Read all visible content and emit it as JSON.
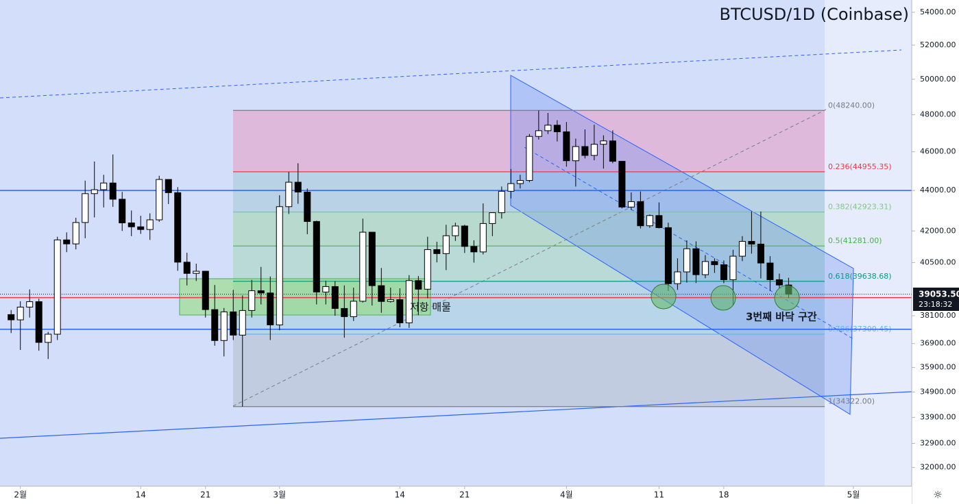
{
  "chart_data": {
    "type": "candlestick",
    "title": "BTCUSD/1D (Coinbase)",
    "log_scale": true,
    "up_color": "#ffffff",
    "down_color": "#000000",
    "ylim": [
      31320,
      54770
    ],
    "yticks": [
      {
        "value": 54000,
        "label": "54000.00"
      },
      {
        "value": 52000,
        "label": "52000.00"
      },
      {
        "value": 50000,
        "label": "50000.00"
      },
      {
        "value": 48000,
        "label": "48000.00"
      },
      {
        "value": 46000,
        "label": "46000.00"
      },
      {
        "value": 44000,
        "label": "44000.00"
      },
      {
        "value": 42000,
        "label": "42000.00"
      },
      {
        "value": 40500,
        "label": "40500.00"
      },
      {
        "value": 38100,
        "label": "38100.00"
      },
      {
        "value": 36900,
        "label": "36900.00"
      },
      {
        "value": 35900,
        "label": "35900.00"
      },
      {
        "value": 34900,
        "label": "34900.00"
      },
      {
        "value": 33900,
        "label": "33900.00"
      },
      {
        "value": 32900,
        "label": "32900.00"
      },
      {
        "value": 32000,
        "label": "32000.00"
      }
    ],
    "xlim": [
      -1.2,
      97.3
    ],
    "xticks": [
      {
        "value": 1,
        "label": "2월"
      },
      14,
      21,
      {
        "value": 29,
        "label": "3월"
      },
      {
        "value": 42,
        "label": "14"
      },
      {
        "value": 49,
        "label": "21"
      },
      {
        "value": 60,
        "label": "4월"
      },
      {
        "value": 70,
        "label": "11"
      },
      {
        "value": 77,
        "label": "18"
      },
      {
        "value": 91,
        "label": "5월"
      }
    ],
    "ohlc": [
      [
        38150,
        38350,
        37350,
        37920
      ],
      [
        37920,
        38740,
        36630,
        38480
      ],
      [
        38480,
        39270,
        38020,
        38720
      ],
      [
        38720,
        38850,
        36600,
        36950
      ],
      [
        36950,
        37400,
        36250,
        37300
      ],
      [
        37300,
        41720,
        37050,
        41570
      ],
      [
        41570,
        41930,
        40990,
        41380
      ],
      [
        41380,
        42640,
        41120,
        42410
      ],
      [
        42410,
        44500,
        41650,
        43840
      ],
      [
        43840,
        45490,
        42660,
        44040
      ],
      [
        44040,
        44800,
        43150,
        44380
      ],
      [
        44380,
        45860,
        43180,
        43560
      ],
      [
        43560,
        43930,
        42000,
        42390
      ],
      [
        42390,
        43000,
        41750,
        42200
      ],
      [
        42200,
        42740,
        41860,
        42070
      ],
      [
        42070,
        42860,
        41570,
        42540
      ],
      [
        42540,
        44750,
        42440,
        44560
      ],
      [
        44560,
        44560,
        43320,
        43890
      ],
      [
        43890,
        44170,
        40120,
        40520
      ],
      [
        40520,
        40960,
        39450,
        40000
      ],
      [
        40000,
        40450,
        39650,
        40100
      ],
      [
        40100,
        40120,
        38020,
        38370
      ],
      [
        38370,
        39470,
        36810,
        37030
      ],
      [
        37030,
        38440,
        36360,
        38270
      ],
      [
        38270,
        39250,
        37050,
        37260
      ],
      [
        37260,
        39000,
        34322,
        38330
      ],
      [
        38330,
        39700,
        38020,
        39210
      ],
      [
        39210,
        40300,
        38600,
        39110
      ],
      [
        39110,
        39860,
        37050,
        37700
      ],
      [
        37700,
        43760,
        37470,
        43190
      ],
      [
        43190,
        44950,
        42830,
        44420
      ],
      [
        44420,
        45400,
        43330,
        43920
      ],
      [
        43920,
        44100,
        41840,
        42460
      ],
      [
        42460,
        42500,
        38600,
        39150
      ],
      [
        39150,
        39670,
        38600,
        39400
      ],
      [
        39400,
        39640,
        38100,
        38420
      ],
      [
        38420,
        39450,
        37150,
        38060
      ],
      [
        38060,
        39350,
        37870,
        38740
      ],
      [
        38740,
        42600,
        38680,
        41940
      ],
      [
        41940,
        41940,
        38550,
        39440
      ],
      [
        39440,
        40250,
        38230,
        38730
      ],
      [
        38730,
        39350,
        38680,
        38810
      ],
      [
        38810,
        39320,
        37600,
        37790
      ],
      [
        37790,
        39920,
        37570,
        39670
      ],
      [
        39670,
        39880,
        38120,
        39280
      ],
      [
        39280,
        41720,
        38870,
        41110
      ],
      [
        41110,
        41480,
        40510,
        40920
      ],
      [
        40920,
        42300,
        40150,
        41770
      ],
      [
        41770,
        42400,
        41520,
        42240
      ],
      [
        42240,
        42300,
        40950,
        41260
      ],
      [
        41260,
        41550,
        40500,
        41000
      ],
      [
        41000,
        43350,
        40880,
        42360
      ],
      [
        42360,
        42900,
        41750,
        42890
      ],
      [
        42890,
        44200,
        42600,
        43960
      ],
      [
        43960,
        45100,
        43600,
        44350
      ],
      [
        44350,
        44800,
        44100,
        44510
      ],
      [
        44510,
        46950,
        44420,
        46820
      ],
      [
        46820,
        48240,
        46650,
        47130
      ],
      [
        47130,
        48100,
        46950,
        47430
      ],
      [
        47430,
        47700,
        46550,
        47070
      ],
      [
        47070,
        47600,
        45220,
        45530
      ],
      [
        45530,
        46700,
        44200,
        46280
      ],
      [
        46280,
        47200,
        45650,
        45810
      ],
      [
        45810,
        47450,
        45550,
        46400
      ],
      [
        46400,
        46880,
        45120,
        46580
      ],
      [
        46580,
        47150,
        45400,
        45500
      ],
      [
        45500,
        45500,
        43100,
        43170
      ],
      [
        43170,
        43900,
        43020,
        43440
      ],
      [
        43440,
        43950,
        42120,
        42250
      ],
      [
        42250,
        42800,
        42150,
        42750
      ],
      [
        42750,
        43400,
        42120,
        42160
      ],
      [
        42160,
        42400,
        39200,
        39530
      ],
      [
        39530,
        40700,
        39250,
        40070
      ],
      [
        40070,
        41550,
        39580,
        41150
      ],
      [
        41150,
        41500,
        39560,
        39940
      ],
      [
        39940,
        40850,
        39780,
        40550
      ],
      [
        40550,
        40700,
        40020,
        40400
      ],
      [
        40400,
        40600,
        39550,
        39710
      ],
      [
        39710,
        41100,
        38550,
        40800
      ],
      [
        40800,
        41750,
        40570,
        41500
      ],
      [
        41500,
        42950,
        40920,
        41370
      ],
      [
        41370,
        42950,
        39770,
        40480
      ],
      [
        40480,
        40800,
        39200,
        39710
      ],
      [
        39710,
        39990,
        39300,
        39470
      ],
      [
        39470,
        39800,
        38880,
        39053.5
      ]
    ],
    "fib": [
      {
        "label": "0(48240.00)",
        "value": 48240,
        "color": "#787b86"
      },
      {
        "label": "0.236(44955.35)",
        "value": 44955.35,
        "color": "#f23645"
      },
      {
        "label": "0.382(42923.31)",
        "value": 42923.31,
        "color": "#81c784"
      },
      {
        "label": "0.5(41281.00)",
        "value": 41281,
        "color": "#4caf50"
      },
      {
        "label": "0.618(39638.68)",
        "value": 39638.68,
        "color": "#089981"
      },
      {
        "label": "0.786(37300.45)",
        "value": 37300.45,
        "color": "#64b5f6"
      },
      {
        "label": "1(34322.00)",
        "value": 34322,
        "color": "#787b86"
      }
    ],
    "levels": [
      {
        "value": 44000,
        "color": "#2962ff"
      },
      {
        "value": 37510,
        "color": "#2962ff"
      },
      {
        "value": 38900,
        "color": "#f23645"
      }
    ],
    "last_price": {
      "value": 39053.5,
      "label": "39053.50"
    },
    "countdown": "23:18:32",
    "annotations": [
      "저항 매물",
      "3번째 바닥 구간"
    ]
  }
}
